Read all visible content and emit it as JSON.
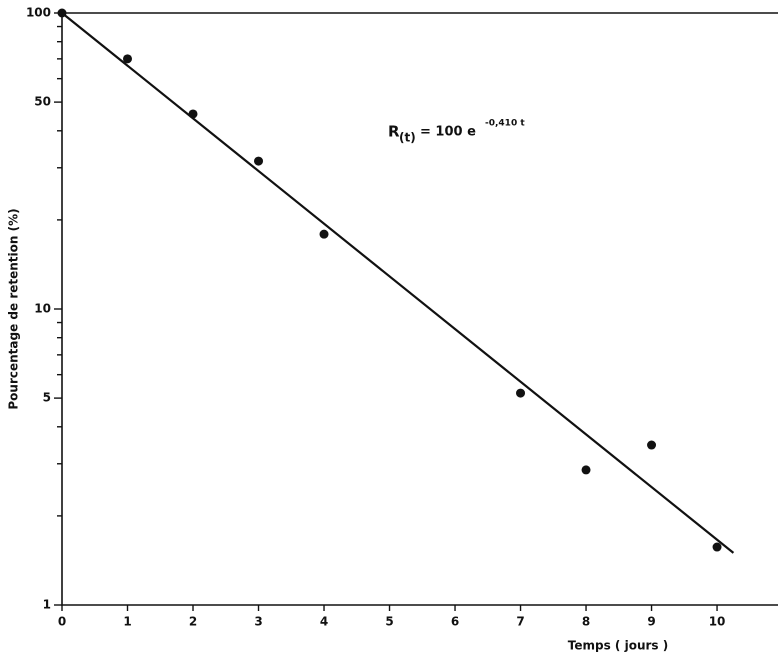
{
  "chart_data": {
    "type": "scatter",
    "x": [
      0,
      1,
      2,
      3,
      4,
      7,
      8,
      9,
      10
    ],
    "values": [
      100,
      70,
      45.6,
      31.6,
      17.9,
      5.2,
      2.86,
      3.47,
      1.57
    ],
    "color": "#111111",
    "fit": {
      "x": [
        0,
        10.25
      ],
      "values": [
        100,
        1.5
      ]
    },
    "xlabel": "Temps ( jours )",
    "ylabel": "Pourcentage de retention (%)",
    "annotation": {
      "r": "R",
      "sub": "(t)",
      "base": "= 100 e",
      "exp": "-0,410 t"
    },
    "xlim": [
      0,
      10.9
    ],
    "xticks": [
      0,
      1,
      2,
      3,
      4,
      5,
      6,
      7,
      8,
      9,
      10
    ],
    "ylim": [
      1,
      100
    ],
    "ylog": true,
    "yticks": [
      1,
      5,
      10,
      50,
      100
    ],
    "yminorticks": [
      2,
      3,
      4,
      6,
      7,
      8,
      9,
      20,
      30,
      40,
      60,
      70,
      80,
      90
    ]
  }
}
